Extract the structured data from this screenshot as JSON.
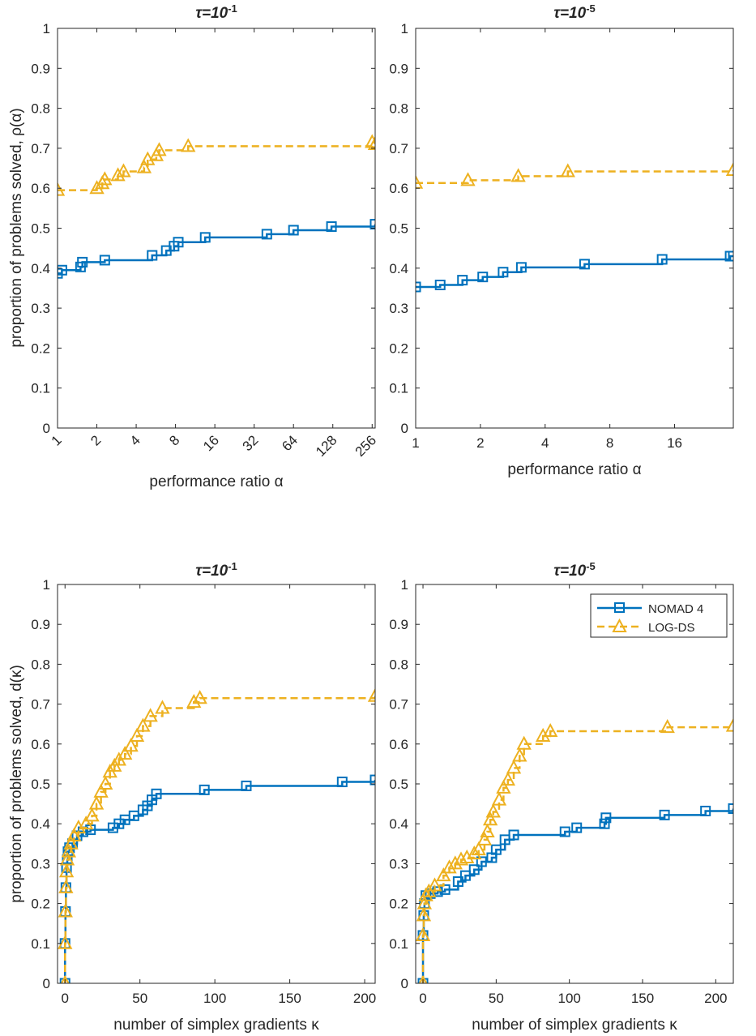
{
  "colors": {
    "nomad": "#0072BD",
    "logds": "#EDB120",
    "axis": "#262626"
  },
  "series_names": [
    "NOMAD 4",
    "LOG-DS"
  ],
  "chart_data": [
    {
      "id": "perf-tau1",
      "type": "line",
      "title_prefix": "τ=10",
      "title_exp": "-1",
      "xscale": "log2",
      "xlim": [
        1,
        270
      ],
      "ylim": [
        0,
        1
      ],
      "xticks": [
        1,
        2,
        4,
        8,
        16,
        32,
        64,
        128,
        256
      ],
      "xtick_labels": [
        "1",
        "2",
        "4",
        "8",
        "16",
        "32",
        "64",
        "128",
        "256"
      ],
      "xtick_rotated": true,
      "yticks": [
        0,
        0.1,
        0.2,
        0.3,
        0.4,
        0.5,
        0.6,
        0.7,
        0.8,
        0.9,
        1
      ],
      "ytick_labels": [
        "0",
        "0.1",
        "0.2",
        "0.3",
        "0.4",
        "0.5",
        "0.6",
        "0.7",
        "0.8",
        "0.9",
        "1"
      ],
      "ylabel": "proportion of problems solved, ρ(α)",
      "xlabel": "performance ratio α",
      "series": [
        {
          "name": "NOMAD 4",
          "style": "solid",
          "marker": "square",
          "x": [
            1,
            1.08,
            1.5,
            1.55,
            2.3,
            5.3,
            6.8,
            7.8,
            8.4,
            13.5,
            40,
            64,
            125,
            270
          ],
          "y": [
            0.387,
            0.395,
            0.403,
            0.415,
            0.42,
            0.432,
            0.444,
            0.455,
            0.465,
            0.477,
            0.485,
            0.495,
            0.504,
            0.51
          ]
        },
        {
          "name": "LOG-DS",
          "style": "dashed",
          "marker": "triangle",
          "x": [
            1,
            2,
            2.2,
            2.3,
            2.9,
            3.2,
            4.6,
            4.9,
            5.7,
            6,
            10,
            256,
            270
          ],
          "y": [
            0.595,
            0.6,
            0.612,
            0.622,
            0.632,
            0.642,
            0.652,
            0.672,
            0.682,
            0.695,
            0.705,
            0.715,
            0.71
          ]
        }
      ]
    },
    {
      "id": "perf-tau5",
      "type": "line",
      "title_prefix": "τ=10",
      "title_exp": "-5",
      "xscale": "log2",
      "xlim": [
        1,
        30
      ],
      "ylim": [
        0,
        1
      ],
      "xticks": [
        1,
        2,
        4,
        8,
        16
      ],
      "xtick_labels": [
        "1",
        "2",
        "4",
        "8",
        "16"
      ],
      "xtick_rotated": false,
      "yticks": [
        0,
        0.1,
        0.2,
        0.3,
        0.4,
        0.5,
        0.6,
        0.7,
        0.8,
        0.9,
        1
      ],
      "ytick_labels": [
        "0",
        "0.1",
        "0.2",
        "0.3",
        "0.4",
        "0.5",
        "0.6",
        "0.7",
        "0.8",
        "0.9",
        "1"
      ],
      "ylabel": "",
      "xlabel": "performance ratio α",
      "series": [
        {
          "name": "NOMAD 4",
          "style": "solid",
          "marker": "square",
          "x": [
            1,
            1.3,
            1.65,
            2.05,
            2.55,
            3.1,
            6.1,
            14,
            29,
            30
          ],
          "y": [
            0.353,
            0.358,
            0.37,
            0.378,
            0.39,
            0.402,
            0.41,
            0.422,
            0.43,
            0.43
          ]
        },
        {
          "name": "LOG-DS",
          "style": "dashed",
          "marker": "triangle",
          "x": [
            1,
            1.75,
            3,
            5.1,
            30
          ],
          "y": [
            0.613,
            0.62,
            0.63,
            0.642,
            0.645
          ]
        }
      ]
    },
    {
      "id": "data-tau1",
      "type": "line",
      "title_prefix": "τ=10",
      "title_exp": "-1",
      "xscale": "linear",
      "xlim": [
        -5,
        207
      ],
      "ylim": [
        0,
        1
      ],
      "xticks": [
        0,
        50,
        100,
        150,
        200
      ],
      "xtick_labels": [
        "0",
        "50",
        "100",
        "150",
        "200"
      ],
      "xtick_rotated": false,
      "yticks": [
        0,
        0.1,
        0.2,
        0.3,
        0.4,
        0.5,
        0.6,
        0.7,
        0.8,
        0.9,
        1
      ],
      "ytick_labels": [
        "0",
        "0.1",
        "0.2",
        "0.3",
        "0.4",
        "0.5",
        "0.6",
        "0.7",
        "0.8",
        "0.9",
        "1"
      ],
      "ylabel": "proportion of problems solved, d(κ)",
      "xlabel": "number of simplex gradients κ",
      "series": [
        {
          "name": "NOMAD 4",
          "style": "solid",
          "marker": "square",
          "x": [
            0,
            0,
            0.3,
            0.6,
            1,
            1.5,
            2,
            3,
            5,
            8,
            12,
            17,
            32,
            36,
            40,
            46,
            52,
            55,
            58,
            61,
            93,
            121,
            185,
            207
          ],
          "y": [
            0,
            0.1,
            0.18,
            0.24,
            0.29,
            0.31,
            0.33,
            0.34,
            0.35,
            0.37,
            0.38,
            0.385,
            0.39,
            0.4,
            0.41,
            0.42,
            0.435,
            0.445,
            0.46,
            0.475,
            0.485,
            0.495,
            0.505,
            0.51
          ]
        },
        {
          "name": "LOG-DS",
          "style": "dashed",
          "marker": "triangle",
          "x": [
            0,
            0,
            0.3,
            0.6,
            1,
            1.5,
            2.5,
            4,
            6,
            9,
            14,
            18,
            21,
            24,
            27,
            30,
            33,
            36,
            40,
            44,
            48,
            52,
            57,
            65,
            86,
            90,
            207
          ],
          "y": [
            0,
            0.1,
            0.18,
            0.24,
            0.28,
            0.31,
            0.33,
            0.35,
            0.37,
            0.39,
            0.4,
            0.42,
            0.45,
            0.48,
            0.5,
            0.53,
            0.545,
            0.56,
            0.575,
            0.595,
            0.62,
            0.645,
            0.67,
            0.69,
            0.705,
            0.715,
            0.72
          ]
        }
      ]
    },
    {
      "id": "data-tau5",
      "type": "line",
      "title_prefix": "τ=10",
      "title_exp": "-5",
      "xscale": "linear",
      "xlim": [
        -5,
        212
      ],
      "ylim": [
        0,
        1
      ],
      "xticks": [
        0,
        50,
        100,
        150,
        200
      ],
      "xtick_labels": [
        "0",
        "50",
        "100",
        "150",
        "200"
      ],
      "xtick_rotated": false,
      "yticks": [
        0,
        0.1,
        0.2,
        0.3,
        0.4,
        0.5,
        0.6,
        0.7,
        0.8,
        0.9,
        1
      ],
      "ytick_labels": [
        "0",
        "0.1",
        "0.2",
        "0.3",
        "0.4",
        "0.5",
        "0.6",
        "0.7",
        "0.8",
        "0.9",
        "1"
      ],
      "ylabel": "",
      "xlabel": "number of simplex gradients κ",
      "legend": "top-right",
      "series": [
        {
          "name": "NOMAD 4",
          "style": "solid",
          "marker": "square",
          "x": [
            0,
            0,
            0.5,
            1,
            2,
            5,
            10,
            15,
            24,
            29,
            35,
            40,
            47,
            50,
            56,
            62,
            97,
            105,
            124,
            125,
            165,
            193,
            212
          ],
          "y": [
            0,
            0.12,
            0.17,
            0.2,
            0.22,
            0.225,
            0.23,
            0.235,
            0.255,
            0.27,
            0.285,
            0.305,
            0.315,
            0.335,
            0.36,
            0.372,
            0.38,
            0.39,
            0.4,
            0.415,
            0.422,
            0.432,
            0.438
          ]
        },
        {
          "name": "LOG-DS",
          "style": "dashed",
          "marker": "triangle",
          "x": [
            0,
            0,
            0.5,
            1,
            2,
            4,
            8,
            14,
            18,
            22,
            26,
            30,
            35,
            38,
            42,
            44,
            46,
            48,
            52,
            55,
            58,
            62,
            66,
            69,
            82,
            87,
            167,
            212
          ],
          "y": [
            0,
            0.12,
            0.17,
            0.2,
            0.22,
            0.23,
            0.245,
            0.27,
            0.29,
            0.3,
            0.31,
            0.315,
            0.325,
            0.335,
            0.36,
            0.38,
            0.41,
            0.43,
            0.46,
            0.49,
            0.51,
            0.54,
            0.57,
            0.6,
            0.62,
            0.632,
            0.642,
            0.645
          ]
        }
      ]
    }
  ]
}
